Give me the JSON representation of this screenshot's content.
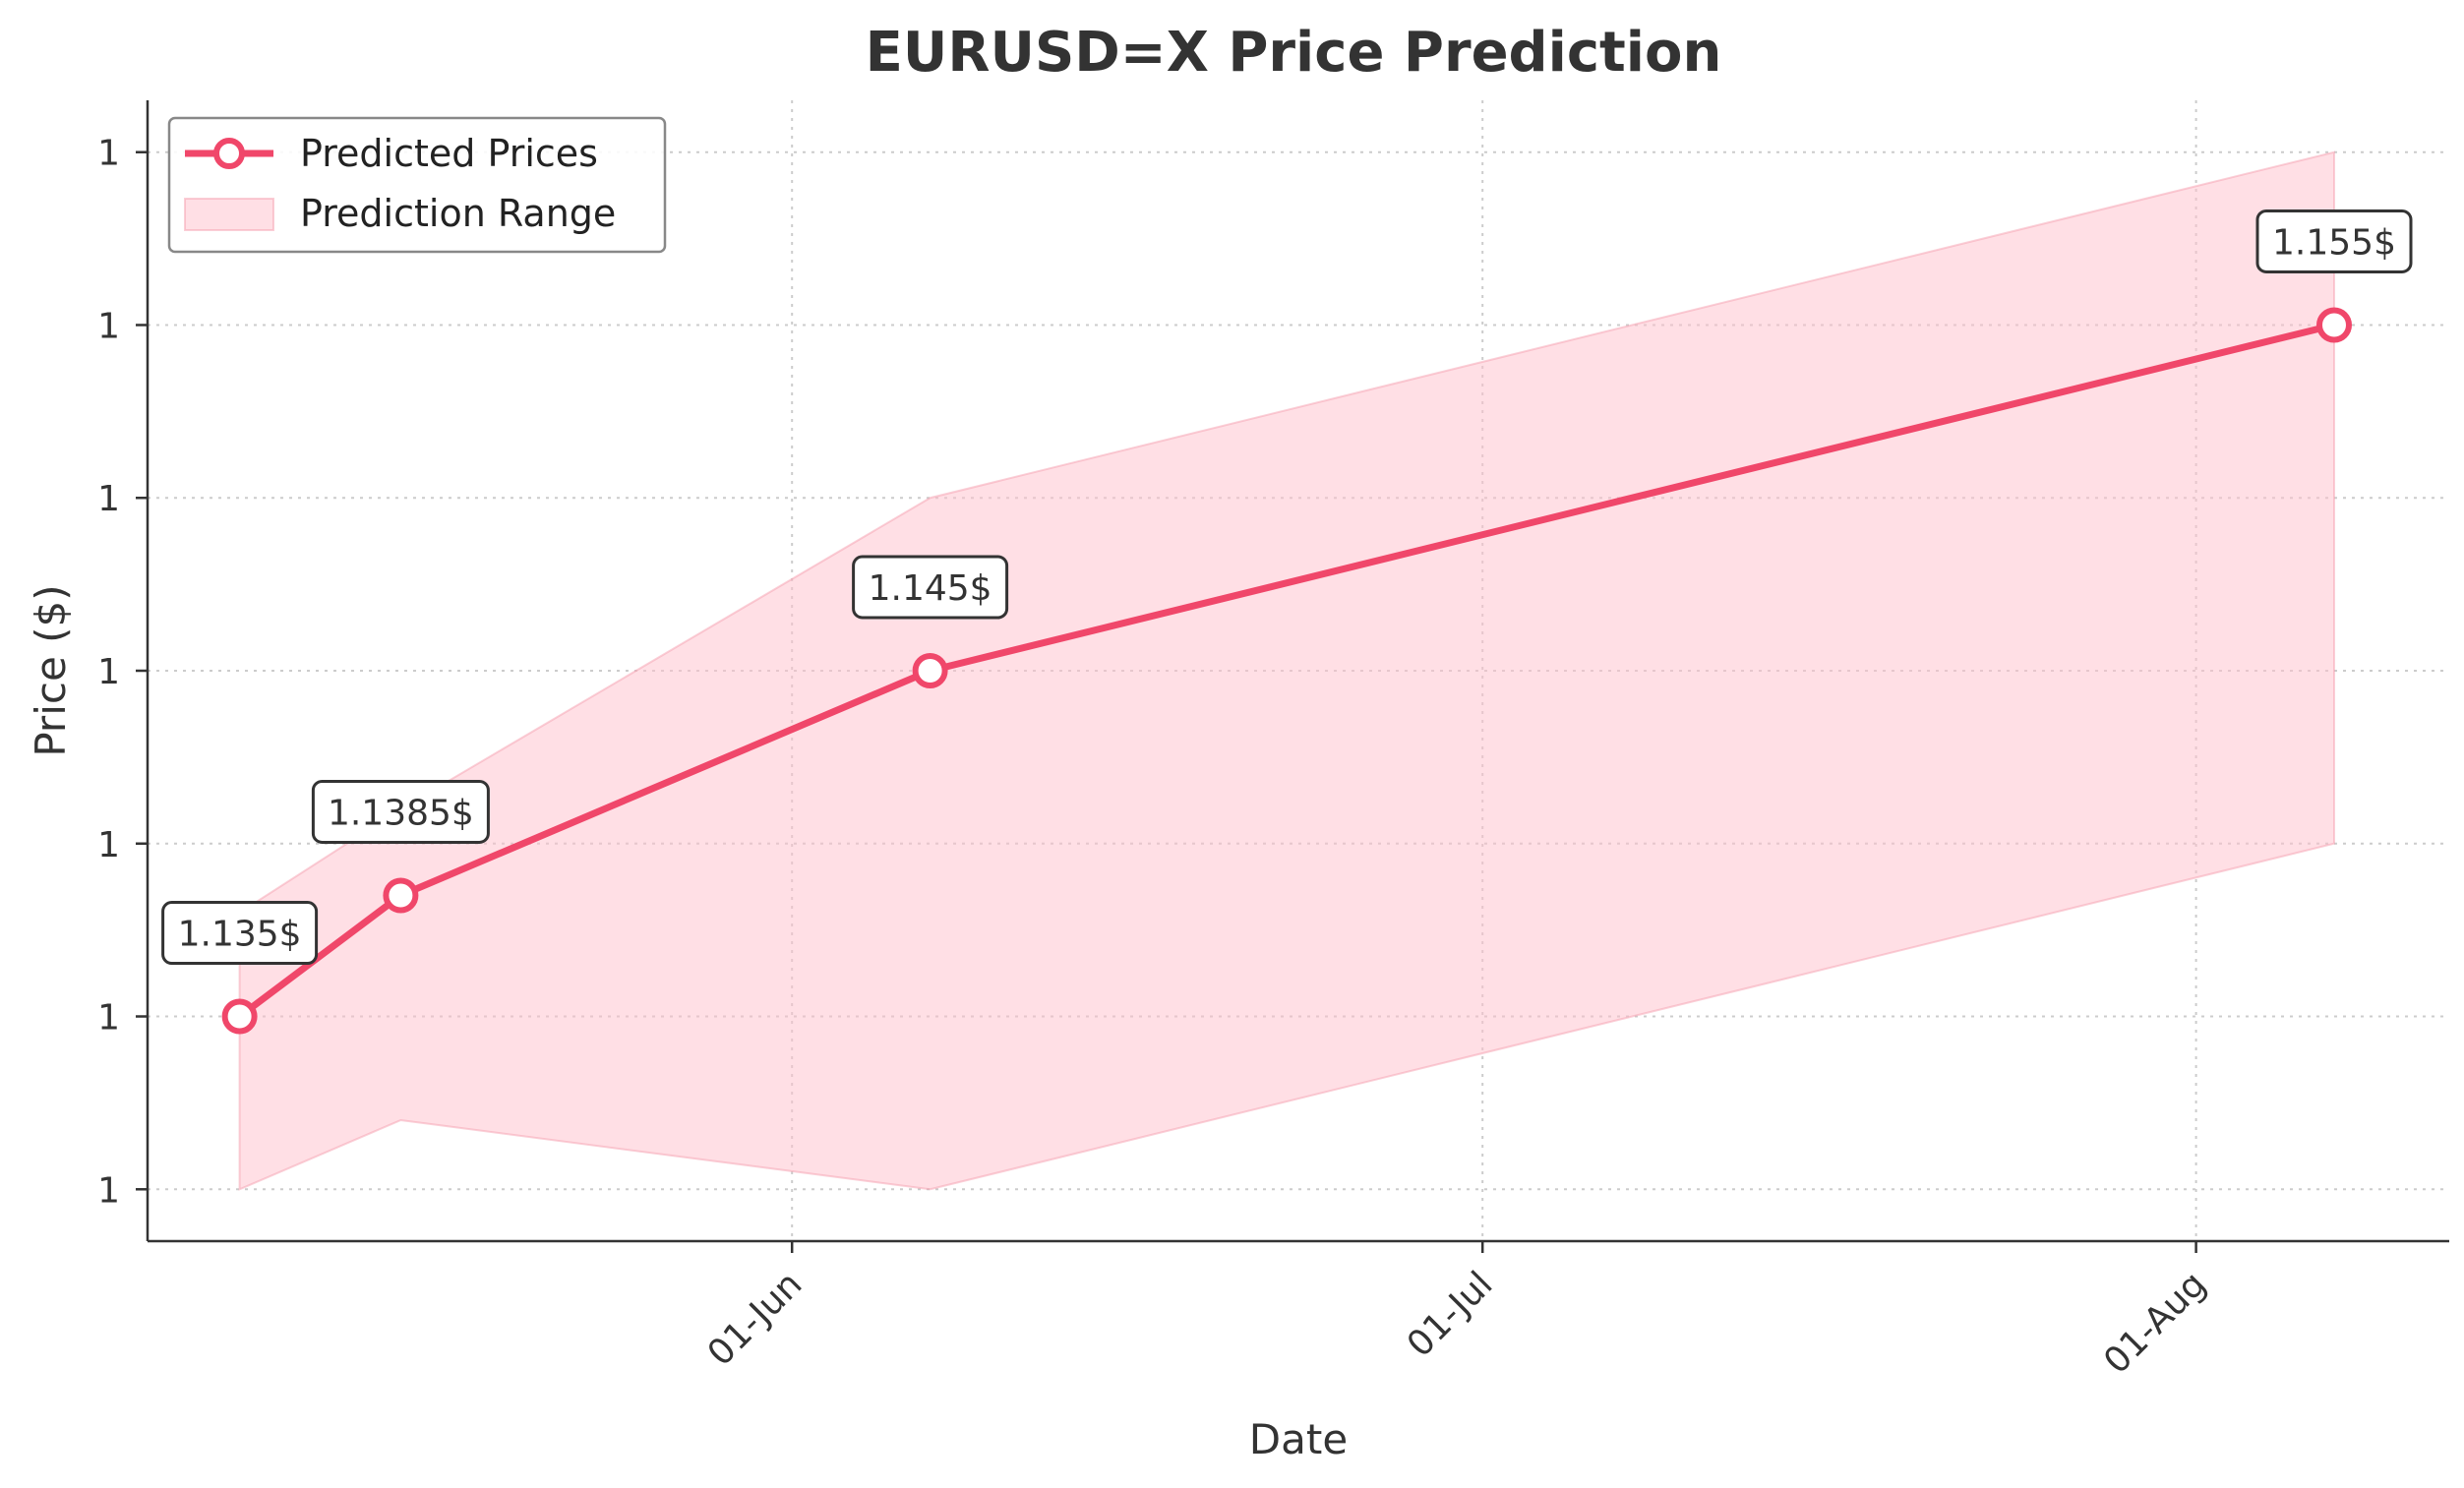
{
  "chart_data": {
    "type": "line",
    "title": "EURUSD=X Price Prediction",
    "xlabel": "Date",
    "ylabel": "Price ($)",
    "x_tick_labels": [
      "01-Jun",
      "01-Jul",
      "01-Aug"
    ],
    "x_ticks": [
      "2025-06-01",
      "2025-07-01",
      "2025-08-01"
    ],
    "y_tick_labels": [
      "1",
      "1",
      "1",
      "1",
      "1",
      "1",
      "1"
    ],
    "y_ticks": [
      1.13,
      1.135,
      1.14,
      1.145,
      1.15,
      1.155,
      1.16
    ],
    "xlim": [
      "2025-05-04",
      "2025-08-12"
    ],
    "ylim": [
      1.1285,
      1.1615
    ],
    "grid": true,
    "legend_position": "top-left",
    "series": [
      {
        "name": "Predicted Prices",
        "color": "#f0476a",
        "points": [
          {
            "x": "2025-05-08",
            "y": 1.135
          },
          {
            "x": "2025-05-15",
            "y": 1.1385
          },
          {
            "x": "2025-06-07",
            "y": 1.145
          },
          {
            "x": "2025-08-07",
            "y": 1.155
          }
        ],
        "data_labels": [
          "1.135$",
          "1.1385$",
          "1.145$",
          "1.155$"
        ]
      }
    ],
    "band": {
      "name": "Prediction Range",
      "color": "#ffc0cb",
      "points": [
        {
          "x": "2025-05-08",
          "low": 1.13,
          "high": 1.138
        },
        {
          "x": "2025-05-15",
          "low": 1.132,
          "high": 1.141
        },
        {
          "x": "2025-06-07",
          "low": 1.13,
          "high": 1.15
        },
        {
          "x": "2025-08-07",
          "low": 1.14,
          "high": 1.16
        }
      ]
    }
  }
}
